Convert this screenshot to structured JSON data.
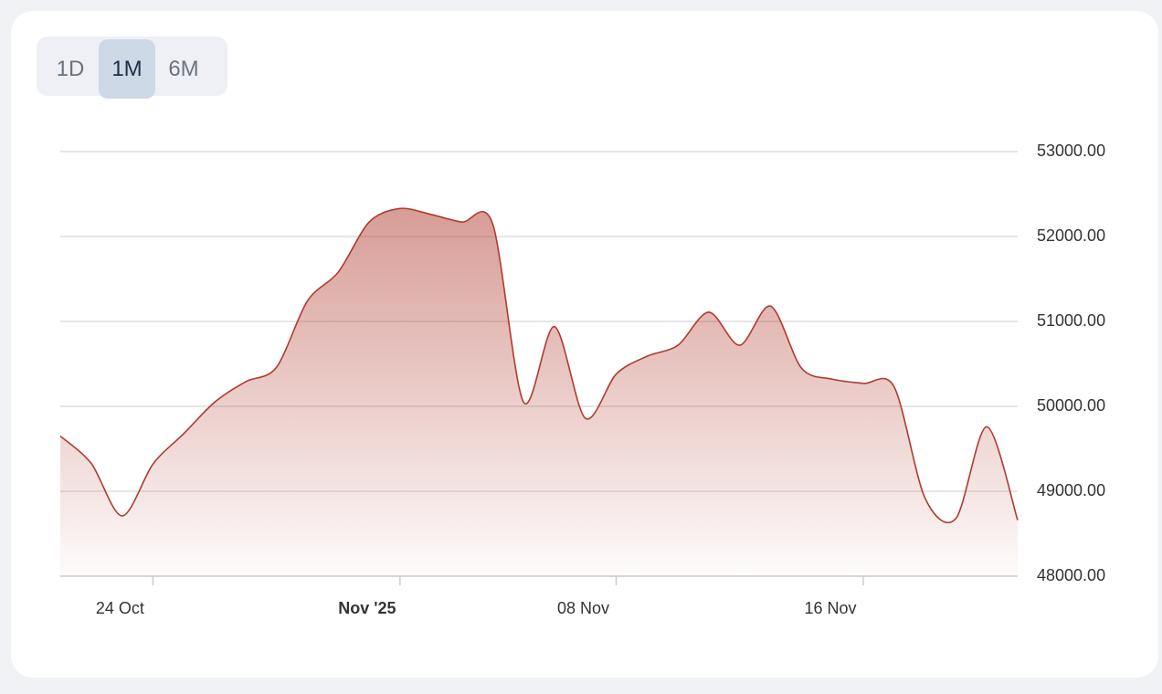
{
  "range_buttons": [
    {
      "label": "1D"
    },
    {
      "label": "1M",
      "selected": true
    },
    {
      "label": "6M"
    }
  ],
  "chart_data": {
    "type": "area",
    "x": [
      "2025-10-21",
      "2025-10-22",
      "2025-10-23",
      "2025-10-24",
      "2025-10-25",
      "2025-10-26",
      "2025-10-27",
      "2025-10-28",
      "2025-10-29",
      "2025-10-30",
      "2025-10-31",
      "2025-11-01",
      "2025-11-02",
      "2025-11-03",
      "2025-11-04",
      "2025-11-05",
      "2025-11-06",
      "2025-11-07",
      "2025-11-08",
      "2025-11-09",
      "2025-11-10",
      "2025-11-11",
      "2025-11-12",
      "2025-11-13",
      "2025-11-14",
      "2025-11-15",
      "2025-11-16",
      "2025-11-17",
      "2025-11-18",
      "2025-11-19",
      "2025-11-20",
      "2025-11-21"
    ],
    "values": [
      49650,
      49330,
      48710,
      49320,
      49680,
      50050,
      50290,
      50460,
      51240,
      51580,
      52170,
      52330,
      52260,
      52170,
      52150,
      50050,
      50940,
      49860,
      50380,
      50590,
      50720,
      51110,
      50720,
      51180,
      50450,
      50320,
      50270,
      50230,
      48920,
      48680,
      49760,
      48660
    ],
    "color": "#b03a2e",
    "xlim": [
      "2025-10-21",
      "2025-11-21"
    ],
    "xticks": [
      {
        "value": "2025-10-24",
        "label": "24 Oct"
      },
      {
        "value": "2025-11-01",
        "label": "Nov '25",
        "bold": true
      },
      {
        "value": "2025-11-08",
        "label": "08 Nov"
      },
      {
        "value": "2025-11-16",
        "label": "16 Nov"
      }
    ],
    "ylim": [
      48000,
      53000
    ],
    "yticks": [
      {
        "value": 48000,
        "label": "48000.00"
      },
      {
        "value": 49000,
        "label": "49000.00"
      },
      {
        "value": 50000,
        "label": "50000.00"
      },
      {
        "value": 51000,
        "label": "51000.00"
      },
      {
        "value": 52000,
        "label": "52000.00"
      },
      {
        "value": 53000,
        "label": "53000.00"
      }
    ],
    "grid": true
  }
}
